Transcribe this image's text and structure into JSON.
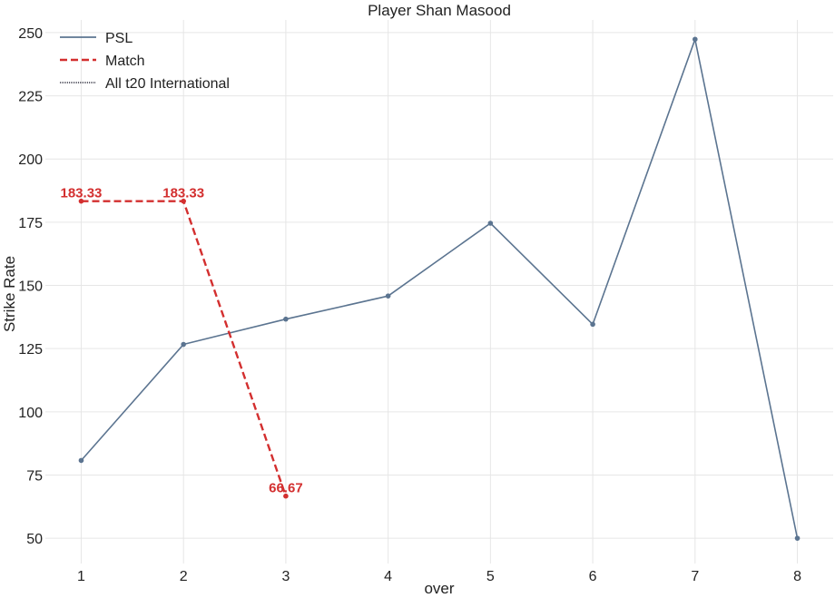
{
  "chart_data": {
    "type": "line",
    "title": "Player Shan Masood",
    "xlabel": "over",
    "ylabel": "Strike Rate",
    "xlim": [
      0.65,
      8.35
    ],
    "ylim": [
      40,
      255
    ],
    "xticks": [
      1,
      2,
      3,
      4,
      5,
      6,
      7,
      8
    ],
    "yticks": [
      50,
      75,
      100,
      125,
      150,
      175,
      200,
      225,
      250
    ],
    "grid": true,
    "legend_position": "top-left",
    "series": [
      {
        "name": "PSL",
        "color": "#5b7490",
        "style": "solid",
        "markers": true,
        "x": [
          1,
          2,
          3,
          4,
          5,
          6,
          7,
          8
        ],
        "y": [
          80.77,
          126.67,
          136.67,
          145.83,
          174.6,
          134.62,
          247.37,
          50.0
        ]
      },
      {
        "name": "Match",
        "color": "#d32f2f",
        "style": "dashed",
        "markers": true,
        "data_labels": true,
        "x": [
          1,
          2,
          3
        ],
        "y": [
          183.33,
          183.33,
          66.67
        ],
        "labels": [
          "183.33",
          "183.33",
          "66.67"
        ]
      },
      {
        "name": "All t20 International",
        "color": "#2e2e3e",
        "style": "dotted",
        "markers": false,
        "x": [],
        "y": []
      }
    ]
  }
}
